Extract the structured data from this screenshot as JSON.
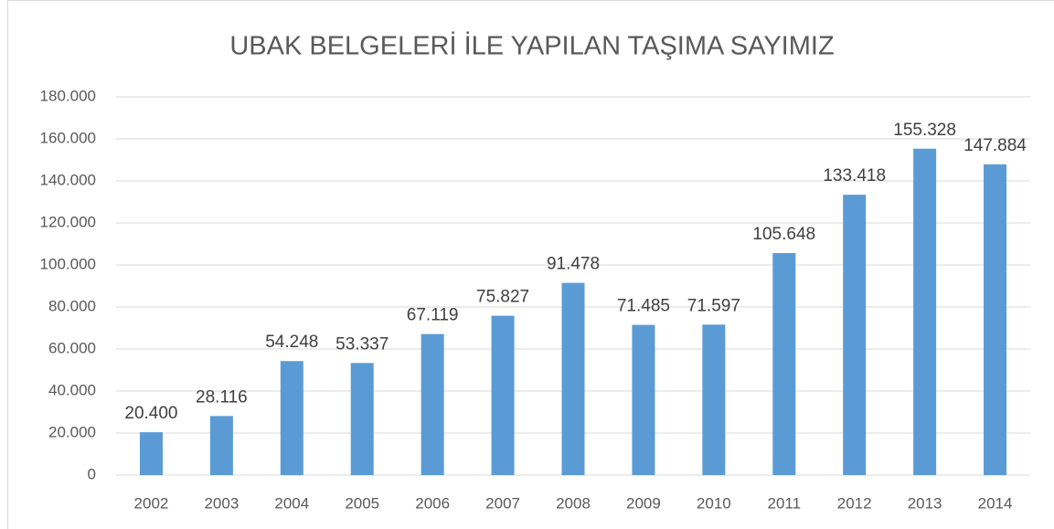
{
  "chart_data": {
    "type": "bar",
    "title": "UBAK BELGELERİ İLE YAPILAN TAŞIMA SAYIMIZ",
    "categories": [
      "2002",
      "2003",
      "2004",
      "2005",
      "2006",
      "2007",
      "2008",
      "2009",
      "2010",
      "2011",
      "2012",
      "2013",
      "2014"
    ],
    "values": [
      20400,
      28116,
      54248,
      53337,
      67119,
      75827,
      91478,
      71485,
      71597,
      105648,
      133418,
      155328,
      147884
    ],
    "value_labels": [
      "20.400",
      "28.116",
      "54.248",
      "53.337",
      "67.119",
      "75.827",
      "91.478",
      "71.485",
      "71.597",
      "105.648",
      "133.418",
      "155.328",
      "147.884"
    ],
    "color": "#5b9bd5",
    "ylim": [
      0,
      180000
    ],
    "yticks": [
      0,
      {
        "value": 20000,
        "label": "20.000"
      },
      {
        "value": 40000,
        "label": "40.000"
      },
      {
        "value": 60000,
        "label": "60.000"
      },
      {
        "value": 80000,
        "label": "80.000"
      },
      {
        "value": 100000,
        "label": "100.000"
      },
      {
        "value": 120000,
        "label": "120.000"
      },
      {
        "value": 140000,
        "label": "140.000"
      },
      {
        "value": 160000,
        "label": "160.000"
      },
      {
        "value": 180000,
        "label": "180.000"
      }
    ],
    "grid": true
  }
}
